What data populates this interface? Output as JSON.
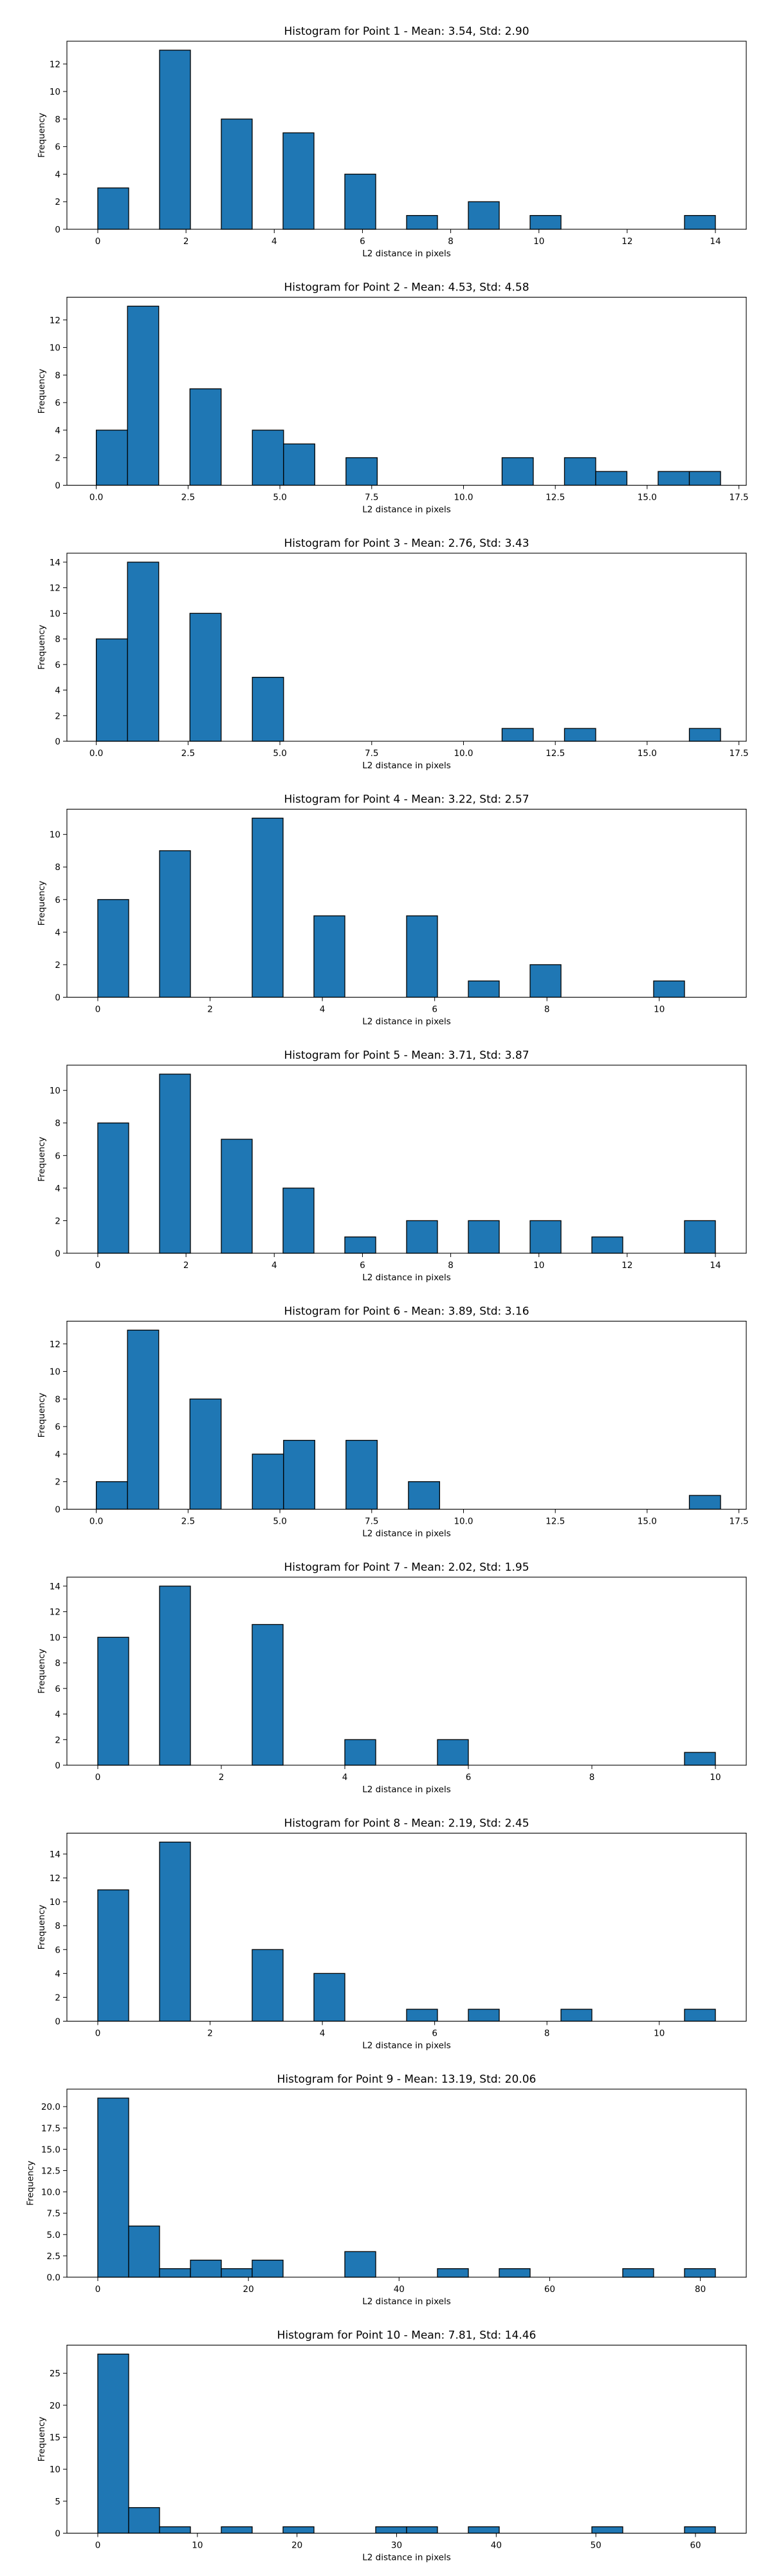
{
  "bar_color": "#1f77b4",
  "edge_color": "#000000",
  "chart_data": [
    {
      "type": "bar",
      "title": "Histogram for Point 1 - Mean: 3.54, Std: 2.90",
      "xlabel": "L2 distance in pixels",
      "ylabel": "Frequency",
      "xlim": [
        -0.7,
        14.7
      ],
      "ylim": [
        0,
        13.65
      ],
      "xticks": [
        0,
        2,
        4,
        6,
        8,
        10,
        12,
        14
      ],
      "xtick_labels": [
        "0",
        "2",
        "4",
        "6",
        "8",
        "10",
        "12",
        "14"
      ],
      "yticks": [
        0,
        2,
        4,
        6,
        8,
        10,
        12
      ],
      "ytick_labels": [
        "0",
        "2",
        "4",
        "6",
        "8",
        "10",
        "12"
      ],
      "bins": [
        {
          "x0": 0.0,
          "x1": 0.7,
          "value": 3
        },
        {
          "x0": 1.4,
          "x1": 2.1,
          "value": 13
        },
        {
          "x0": 2.8,
          "x1": 3.5,
          "value": 8
        },
        {
          "x0": 4.2,
          "x1": 4.9,
          "value": 7
        },
        {
          "x0": 5.6,
          "x1": 6.3,
          "value": 4
        },
        {
          "x0": 7.0,
          "x1": 7.7,
          "value": 1
        },
        {
          "x0": 8.4,
          "x1": 9.1,
          "value": 2
        },
        {
          "x0": 9.8,
          "x1": 10.5,
          "value": 1
        },
        {
          "x0": 13.3,
          "x1": 14.0,
          "value": 1
        }
      ]
    },
    {
      "type": "bar",
      "title": "Histogram for Point 2 - Mean: 4.53, Std: 4.58",
      "xlabel": "L2 distance in pixels",
      "ylabel": "Frequency",
      "xlim": [
        -0.8,
        17.7
      ],
      "ylim": [
        0,
        13.65
      ],
      "xticks": [
        0,
        2.5,
        5,
        7.5,
        10,
        12.5,
        15,
        17.5
      ],
      "xtick_labels": [
        "0.0",
        "2.5",
        "5.0",
        "7.5",
        "10.0",
        "12.5",
        "15.0",
        "17.5"
      ],
      "yticks": [
        0,
        2,
        4,
        6,
        8,
        10,
        12
      ],
      "ytick_labels": [
        "0",
        "2",
        "4",
        "6",
        "8",
        "10",
        "12"
      ],
      "bins": [
        {
          "x0": 0.0,
          "x1": 0.85,
          "value": 4
        },
        {
          "x0": 0.85,
          "x1": 1.7,
          "value": 13
        },
        {
          "x0": 2.55,
          "x1": 3.4,
          "value": 7
        },
        {
          "x0": 4.25,
          "x1": 5.1,
          "value": 4
        },
        {
          "x0": 5.1,
          "x1": 5.95,
          "value": 3
        },
        {
          "x0": 6.8,
          "x1": 7.65,
          "value": 2
        },
        {
          "x0": 11.05,
          "x1": 11.9,
          "value": 2
        },
        {
          "x0": 12.75,
          "x1": 13.6,
          "value": 2
        },
        {
          "x0": 13.6,
          "x1": 14.45,
          "value": 1
        },
        {
          "x0": 15.3,
          "x1": 16.15,
          "value": 1
        },
        {
          "x0": 16.15,
          "x1": 17.0,
          "value": 1
        }
      ]
    },
    {
      "type": "bar",
      "title": "Histogram for Point 3 - Mean: 2.76, Std: 3.43",
      "xlabel": "L2 distance in pixels",
      "ylabel": "Frequency",
      "xlim": [
        -0.8,
        17.7
      ],
      "ylim": [
        0,
        14.7
      ],
      "xticks": [
        0,
        2.5,
        5,
        7.5,
        10,
        12.5,
        15,
        17.5
      ],
      "xtick_labels": [
        "0.0",
        "2.5",
        "5.0",
        "7.5",
        "10.0",
        "12.5",
        "15.0",
        "17.5"
      ],
      "yticks": [
        0,
        2,
        4,
        6,
        8,
        10,
        12,
        14
      ],
      "ytick_labels": [
        "0",
        "2",
        "4",
        "6",
        "8",
        "10",
        "12",
        "14"
      ],
      "bins": [
        {
          "x0": 0.0,
          "x1": 0.85,
          "value": 8
        },
        {
          "x0": 0.85,
          "x1": 1.7,
          "value": 14
        },
        {
          "x0": 2.55,
          "x1": 3.4,
          "value": 10
        },
        {
          "x0": 4.25,
          "x1": 5.1,
          "value": 5
        },
        {
          "x0": 11.05,
          "x1": 11.9,
          "value": 1
        },
        {
          "x0": 12.75,
          "x1": 13.6,
          "value": 1
        },
        {
          "x0": 16.15,
          "x1": 17.0,
          "value": 1
        }
      ]
    },
    {
      "type": "bar",
      "title": "Histogram for Point 4 - Mean: 3.22, Std: 2.57",
      "xlabel": "L2 distance in pixels",
      "ylabel": "Frequency",
      "xlim": [
        -0.55,
        11.55
      ],
      "ylim": [
        0,
        11.55
      ],
      "xticks": [
        0,
        2,
        4,
        6,
        8,
        10
      ],
      "xtick_labels": [
        "0",
        "2",
        "4",
        "6",
        "8",
        "10"
      ],
      "yticks": [
        0,
        2,
        4,
        6,
        8,
        10
      ],
      "ytick_labels": [
        "0",
        "2",
        "4",
        "6",
        "8",
        "10"
      ],
      "bins": [
        {
          "x0": 0.0,
          "x1": 0.55,
          "value": 6
        },
        {
          "x0": 1.1,
          "x1": 1.65,
          "value": 9
        },
        {
          "x0": 2.75,
          "x1": 3.3,
          "value": 11
        },
        {
          "x0": 3.85,
          "x1": 4.4,
          "value": 5
        },
        {
          "x0": 5.5,
          "x1": 6.05,
          "value": 5
        },
        {
          "x0": 6.6,
          "x1": 7.15,
          "value": 1
        },
        {
          "x0": 7.7,
          "x1": 8.25,
          "value": 2
        },
        {
          "x0": 9.9,
          "x1": 10.45,
          "value": 1
        }
      ]
    },
    {
      "type": "bar",
      "title": "Histogram for Point 5 - Mean: 3.71, Std: 3.87",
      "xlabel": "L2 distance in pixels",
      "ylabel": "Frequency",
      "xlim": [
        -0.7,
        14.7
      ],
      "ylim": [
        0,
        11.55
      ],
      "xticks": [
        0,
        2,
        4,
        6,
        8,
        10,
        12,
        14
      ],
      "xtick_labels": [
        "0",
        "2",
        "4",
        "6",
        "8",
        "10",
        "12",
        "14"
      ],
      "yticks": [
        0,
        2,
        4,
        6,
        8,
        10
      ],
      "ytick_labels": [
        "0",
        "2",
        "4",
        "6",
        "8",
        "10"
      ],
      "bins": [
        {
          "x0": 0.0,
          "x1": 0.7,
          "value": 8
        },
        {
          "x0": 1.4,
          "x1": 2.1,
          "value": 11
        },
        {
          "x0": 2.8,
          "x1": 3.5,
          "value": 7
        },
        {
          "x0": 4.2,
          "x1": 4.9,
          "value": 4
        },
        {
          "x0": 5.6,
          "x1": 6.3,
          "value": 1
        },
        {
          "x0": 7.0,
          "x1": 7.7,
          "value": 2
        },
        {
          "x0": 8.4,
          "x1": 9.1,
          "value": 2
        },
        {
          "x0": 9.8,
          "x1": 10.5,
          "value": 2
        },
        {
          "x0": 11.2,
          "x1": 11.9,
          "value": 1
        },
        {
          "x0": 13.3,
          "x1": 14.0,
          "value": 2
        }
      ]
    },
    {
      "type": "bar",
      "title": "Histogram for Point 6 - Mean: 3.89, Std: 3.16",
      "xlabel": "L2 distance in pixels",
      "ylabel": "Frequency",
      "xlim": [
        -0.8,
        17.7
      ],
      "ylim": [
        0,
        13.65
      ],
      "xticks": [
        0,
        2.5,
        5,
        7.5,
        10,
        12.5,
        15,
        17.5
      ],
      "xtick_labels": [
        "0.0",
        "2.5",
        "5.0",
        "7.5",
        "10.0",
        "12.5",
        "15.0",
        "17.5"
      ],
      "yticks": [
        0,
        2,
        4,
        6,
        8,
        10,
        12
      ],
      "ytick_labels": [
        "0",
        "2",
        "4",
        "6",
        "8",
        "10",
        "12"
      ],
      "bins": [
        {
          "x0": 0.0,
          "x1": 0.85,
          "value": 2
        },
        {
          "x0": 0.85,
          "x1": 1.7,
          "value": 13
        },
        {
          "x0": 2.55,
          "x1": 3.4,
          "value": 8
        },
        {
          "x0": 4.25,
          "x1": 5.1,
          "value": 4
        },
        {
          "x0": 5.1,
          "x1": 5.95,
          "value": 5
        },
        {
          "x0": 6.8,
          "x1": 7.65,
          "value": 5
        },
        {
          "x0": 8.5,
          "x1": 9.35,
          "value": 2
        },
        {
          "x0": 16.15,
          "x1": 17.0,
          "value": 1
        }
      ]
    },
    {
      "type": "bar",
      "title": "Histogram for Point 7 - Mean: 2.02, Std: 1.95",
      "xlabel": "L2 distance in pixels",
      "ylabel": "Frequency",
      "xlim": [
        -0.5,
        10.5
      ],
      "ylim": [
        0,
        14.7
      ],
      "xticks": [
        0,
        2,
        4,
        6,
        8,
        10
      ],
      "xtick_labels": [
        "0",
        "2",
        "4",
        "6",
        "8",
        "10"
      ],
      "yticks": [
        0,
        2,
        4,
        6,
        8,
        10,
        12,
        14
      ],
      "ytick_labels": [
        "0",
        "2",
        "4",
        "6",
        "8",
        "10",
        "12",
        "14"
      ],
      "bins": [
        {
          "x0": 0.0,
          "x1": 0.5,
          "value": 10
        },
        {
          "x0": 1.0,
          "x1": 1.5,
          "value": 14
        },
        {
          "x0": 2.5,
          "x1": 3.0,
          "value": 11
        },
        {
          "x0": 4.0,
          "x1": 4.5,
          "value": 2
        },
        {
          "x0": 5.5,
          "x1": 6.0,
          "value": 2
        },
        {
          "x0": 9.5,
          "x1": 10.0,
          "value": 1
        }
      ]
    },
    {
      "type": "bar",
      "title": "Histogram for Point 8 - Mean: 2.19, Std: 2.45",
      "xlabel": "L2 distance in pixels",
      "ylabel": "Frequency",
      "xlim": [
        -0.55,
        11.55
      ],
      "ylim": [
        0,
        15.75
      ],
      "xticks": [
        0,
        2,
        4,
        6,
        8,
        10
      ],
      "xtick_labels": [
        "0",
        "2",
        "4",
        "6",
        "8",
        "10"
      ],
      "yticks": [
        0,
        2,
        4,
        6,
        8,
        10,
        12,
        14
      ],
      "ytick_labels": [
        "0",
        "2",
        "4",
        "6",
        "8",
        "10",
        "12",
        "14"
      ],
      "bins": [
        {
          "x0": 0.0,
          "x1": 0.55,
          "value": 11
        },
        {
          "x0": 1.1,
          "x1": 1.65,
          "value": 15
        },
        {
          "x0": 2.75,
          "x1": 3.3,
          "value": 6
        },
        {
          "x0": 3.85,
          "x1": 4.4,
          "value": 4
        },
        {
          "x0": 5.5,
          "x1": 6.05,
          "value": 1
        },
        {
          "x0": 6.6,
          "x1": 7.15,
          "value": 1
        },
        {
          "x0": 8.25,
          "x1": 8.8,
          "value": 1
        },
        {
          "x0": 10.45,
          "x1": 11.0,
          "value": 1
        }
      ]
    },
    {
      "type": "bar",
      "title": "Histogram for Point 9 - Mean: 13.19, Std: 20.06",
      "xlabel": "L2 distance in pixels",
      "ylabel": "Frequency",
      "xlim": [
        -4.1,
        86.1
      ],
      "ylim": [
        0,
        22.05
      ],
      "xticks": [
        0,
        20,
        40,
        60,
        80
      ],
      "xtick_labels": [
        "0",
        "20",
        "40",
        "60",
        "80"
      ],
      "yticks": [
        0,
        2.5,
        5,
        7.5,
        10,
        12.5,
        15,
        17.5,
        20
      ],
      "ytick_labels": [
        "0.0",
        "2.5",
        "5.0",
        "7.5",
        "10.0",
        "12.5",
        "15.0",
        "17.5",
        "20.0"
      ],
      "bins": [
        {
          "x0": 0.0,
          "x1": 4.1,
          "value": 21
        },
        {
          "x0": 4.1,
          "x1": 8.2,
          "value": 6
        },
        {
          "x0": 8.2,
          "x1": 12.3,
          "value": 1
        },
        {
          "x0": 12.3,
          "x1": 16.4,
          "value": 2
        },
        {
          "x0": 16.4,
          "x1": 20.5,
          "value": 1
        },
        {
          "x0": 20.5,
          "x1": 24.6,
          "value": 2
        },
        {
          "x0": 32.8,
          "x1": 36.9,
          "value": 3
        },
        {
          "x0": 45.1,
          "x1": 49.2,
          "value": 1
        },
        {
          "x0": 53.3,
          "x1": 57.4,
          "value": 1
        },
        {
          "x0": 69.7,
          "x1": 73.8,
          "value": 1
        },
        {
          "x0": 77.9,
          "x1": 82.0,
          "value": 1
        }
      ]
    },
    {
      "type": "bar",
      "title": "Histogram for Point 10 - Mean: 7.81, Std: 14.46",
      "xlabel": "L2 distance in pixels",
      "ylabel": "Frequency",
      "xlim": [
        -3.1,
        65.1
      ],
      "ylim": [
        0,
        29.4
      ],
      "xticks": [
        0,
        10,
        20,
        30,
        40,
        50,
        60
      ],
      "xtick_labels": [
        "0",
        "10",
        "20",
        "30",
        "40",
        "50",
        "60"
      ],
      "yticks": [
        0,
        5,
        10,
        15,
        20,
        25
      ],
      "ytick_labels": [
        "0",
        "5",
        "10",
        "15",
        "20",
        "25"
      ],
      "bins": [
        {
          "x0": 0.0,
          "x1": 3.1,
          "value": 28
        },
        {
          "x0": 3.1,
          "x1": 6.2,
          "value": 4
        },
        {
          "x0": 6.2,
          "x1": 9.3,
          "value": 1
        },
        {
          "x0": 12.4,
          "x1": 15.5,
          "value": 1
        },
        {
          "x0": 18.6,
          "x1": 21.7,
          "value": 1
        },
        {
          "x0": 27.9,
          "x1": 31.0,
          "value": 1
        },
        {
          "x0": 31.0,
          "x1": 34.1,
          "value": 1
        },
        {
          "x0": 37.2,
          "x1": 40.3,
          "value": 1
        },
        {
          "x0": 49.6,
          "x1": 52.7,
          "value": 1
        },
        {
          "x0": 58.9,
          "x1": 62.0,
          "value": 1
        }
      ]
    }
  ]
}
